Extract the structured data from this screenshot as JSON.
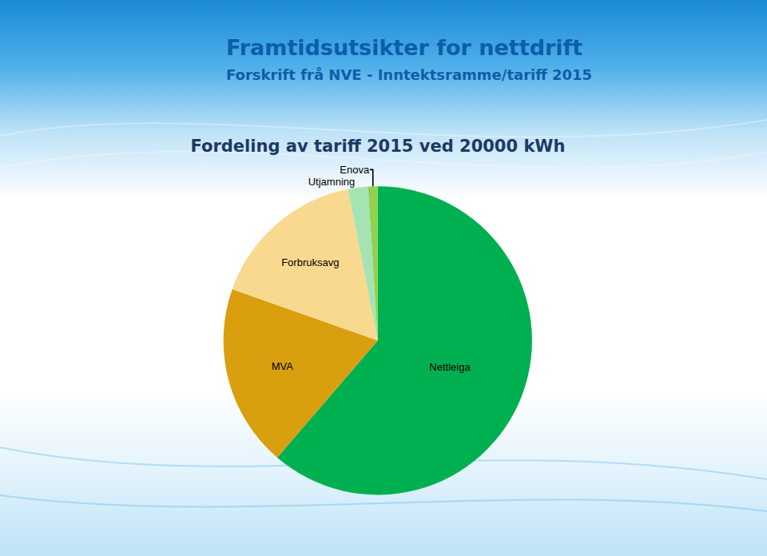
{
  "slide": {
    "title": "Framtidsutsikter for nettdrift",
    "subtitle": "Forskrift frå NVE - Inntektsramme/tariff 2015"
  },
  "chart_data": {
    "type": "pie",
    "title": "Fordeling av tariff 2015 ved 20000 kWh",
    "categories": [
      "Nettleiga",
      "MVA",
      "Forbruksavg",
      "Utjamning",
      "Enova"
    ],
    "values": [
      61.3,
      19.1,
      16.5,
      2.1,
      1.0
    ],
    "colors": [
      "#00b050",
      "#d99f0f",
      "#f9d98f",
      "#a6e3b2",
      "#92d050"
    ]
  }
}
